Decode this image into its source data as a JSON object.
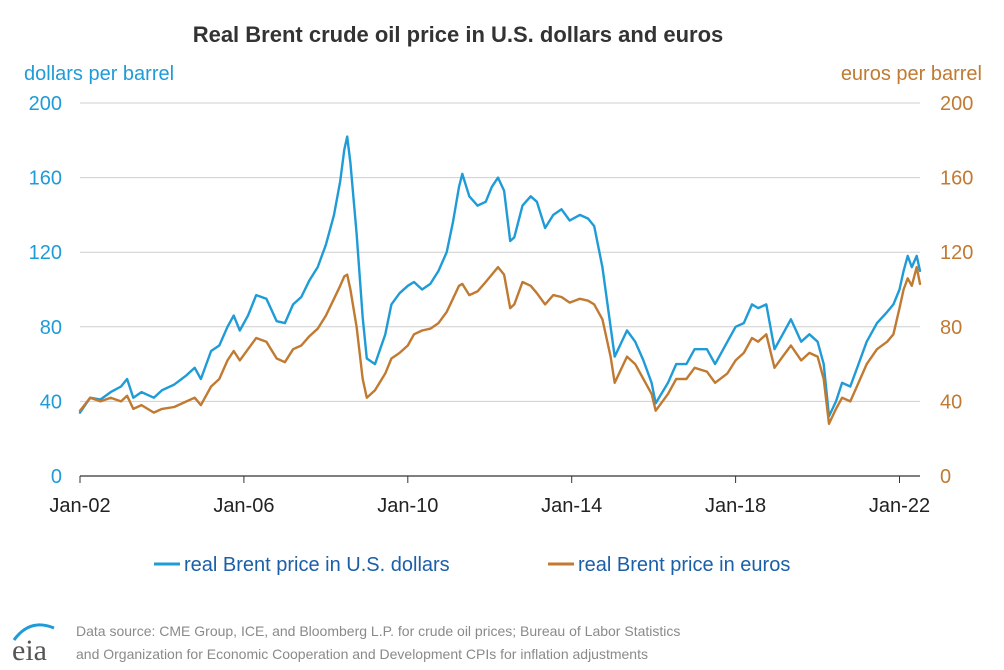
{
  "colors": {
    "usd": "#1f9bd7",
    "eur": "#c07a32",
    "grid": "#cfcfcf",
    "axis": "#333333",
    "source": "#8a8a8a",
    "logo": "#555555",
    "logo_swoosh": "#1f9bd7"
  },
  "source_lines": [
    "Data source: CME Group, ICE, and Bloomberg L.P. for crude oil prices; Bureau of Labor Statistics",
    "and Organization for Economic Cooperation and Development CPIs for inflation adjustments"
  ],
  "logo": {
    "text": "eia"
  },
  "chart_data": {
    "type": "line",
    "title": "Real Brent crude oil price in U.S. dollars and euros",
    "ylabel_left": "dollars per barrel",
    "ylabel_right": "euros per barrel",
    "ylim": [
      0,
      200
    ],
    "yticks": [
      0,
      40,
      80,
      120,
      160,
      200
    ],
    "xlim": [
      2002.0,
      2022.5
    ],
    "xticks": [
      {
        "label": "Jan-02",
        "value": 2002
      },
      {
        "label": "Jan-06",
        "value": 2006
      },
      {
        "label": "Jan-10",
        "value": 2010
      },
      {
        "label": "Jan-14",
        "value": 2014
      },
      {
        "label": "Jan-18",
        "value": 2018
      },
      {
        "label": "Jan-22",
        "value": 2022
      }
    ],
    "grid": true,
    "legend_position": "bottom",
    "series": [
      {
        "name": "real Brent price in U.S. dollars",
        "color": "#1f9bd7",
        "axis": "left",
        "points": [
          [
            2002.0,
            34
          ],
          [
            2002.25,
            42
          ],
          [
            2002.5,
            41
          ],
          [
            2002.75,
            45
          ],
          [
            2003.0,
            48
          ],
          [
            2003.15,
            52
          ],
          [
            2003.3,
            42
          ],
          [
            2003.5,
            45
          ],
          [
            2003.8,
            42
          ],
          [
            2004.0,
            46
          ],
          [
            2004.3,
            49
          ],
          [
            2004.6,
            54
          ],
          [
            2004.8,
            58
          ],
          [
            2004.95,
            52
          ],
          [
            2005.2,
            67
          ],
          [
            2005.4,
            70
          ],
          [
            2005.6,
            80
          ],
          [
            2005.75,
            86
          ],
          [
            2005.9,
            78
          ],
          [
            2006.1,
            86
          ],
          [
            2006.3,
            97
          ],
          [
            2006.55,
            95
          ],
          [
            2006.8,
            83
          ],
          [
            2007.0,
            82
          ],
          [
            2007.2,
            92
          ],
          [
            2007.4,
            96
          ],
          [
            2007.6,
            105
          ],
          [
            2007.8,
            112
          ],
          [
            2008.0,
            124
          ],
          [
            2008.2,
            140
          ],
          [
            2008.35,
            158
          ],
          [
            2008.45,
            175
          ],
          [
            2008.52,
            182
          ],
          [
            2008.6,
            168
          ],
          [
            2008.75,
            130
          ],
          [
            2008.9,
            85
          ],
          [
            2009.0,
            63
          ],
          [
            2009.2,
            60
          ],
          [
            2009.45,
            76
          ],
          [
            2009.6,
            92
          ],
          [
            2009.8,
            98
          ],
          [
            2010.0,
            102
          ],
          [
            2010.15,
            104
          ],
          [
            2010.35,
            100
          ],
          [
            2010.55,
            103
          ],
          [
            2010.75,
            110
          ],
          [
            2010.95,
            120
          ],
          [
            2011.1,
            136
          ],
          [
            2011.25,
            155
          ],
          [
            2011.33,
            162
          ],
          [
            2011.5,
            150
          ],
          [
            2011.7,
            145
          ],
          [
            2011.9,
            147
          ],
          [
            2012.05,
            155
          ],
          [
            2012.2,
            160
          ],
          [
            2012.35,
            153
          ],
          [
            2012.5,
            126
          ],
          [
            2012.6,
            128
          ],
          [
            2012.8,
            145
          ],
          [
            2013.0,
            150
          ],
          [
            2013.15,
            147
          ],
          [
            2013.35,
            133
          ],
          [
            2013.55,
            140
          ],
          [
            2013.75,
            143
          ],
          [
            2013.95,
            137
          ],
          [
            2014.2,
            140
          ],
          [
            2014.4,
            138
          ],
          [
            2014.55,
            134
          ],
          [
            2014.75,
            112
          ],
          [
            2014.95,
            80
          ],
          [
            2015.05,
            64
          ],
          [
            2015.35,
            78
          ],
          [
            2015.55,
            72
          ],
          [
            2015.75,
            62
          ],
          [
            2015.95,
            50
          ],
          [
            2016.05,
            39
          ],
          [
            2016.35,
            50
          ],
          [
            2016.55,
            60
          ],
          [
            2016.8,
            60
          ],
          [
            2017.0,
            68
          ],
          [
            2017.3,
            68
          ],
          [
            2017.5,
            60
          ],
          [
            2017.8,
            72
          ],
          [
            2018.0,
            80
          ],
          [
            2018.2,
            82
          ],
          [
            2018.4,
            92
          ],
          [
            2018.55,
            90
          ],
          [
            2018.75,
            92
          ],
          [
            2018.95,
            68
          ],
          [
            2019.15,
            76
          ],
          [
            2019.35,
            84
          ],
          [
            2019.6,
            72
          ],
          [
            2019.8,
            76
          ],
          [
            2020.0,
            72
          ],
          [
            2020.15,
            60
          ],
          [
            2020.28,
            32
          ],
          [
            2020.45,
            40
          ],
          [
            2020.6,
            50
          ],
          [
            2020.8,
            48
          ],
          [
            2021.0,
            60
          ],
          [
            2021.2,
            72
          ],
          [
            2021.45,
            82
          ],
          [
            2021.7,
            88
          ],
          [
            2021.85,
            92
          ],
          [
            2022.0,
            100
          ],
          [
            2022.1,
            110
          ],
          [
            2022.2,
            118
          ],
          [
            2022.3,
            112
          ],
          [
            2022.42,
            118
          ],
          [
            2022.5,
            110
          ]
        ]
      },
      {
        "name": "real Brent price in euros",
        "color": "#c07a32",
        "axis": "right",
        "points": [
          [
            2002.0,
            35
          ],
          [
            2002.25,
            42
          ],
          [
            2002.5,
            40
          ],
          [
            2002.75,
            42
          ],
          [
            2003.0,
            40
          ],
          [
            2003.15,
            43
          ],
          [
            2003.3,
            36
          ],
          [
            2003.5,
            38
          ],
          [
            2003.8,
            34
          ],
          [
            2004.0,
            36
          ],
          [
            2004.3,
            37
          ],
          [
            2004.6,
            40
          ],
          [
            2004.8,
            42
          ],
          [
            2004.95,
            38
          ],
          [
            2005.2,
            48
          ],
          [
            2005.4,
            52
          ],
          [
            2005.6,
            62
          ],
          [
            2005.75,
            67
          ],
          [
            2005.9,
            62
          ],
          [
            2006.1,
            68
          ],
          [
            2006.3,
            74
          ],
          [
            2006.55,
            72
          ],
          [
            2006.8,
            63
          ],
          [
            2007.0,
            61
          ],
          [
            2007.2,
            68
          ],
          [
            2007.4,
            70
          ],
          [
            2007.6,
            75
          ],
          [
            2007.8,
            79
          ],
          [
            2008.0,
            86
          ],
          [
            2008.2,
            95
          ],
          [
            2008.35,
            102
          ],
          [
            2008.45,
            107
          ],
          [
            2008.52,
            108
          ],
          [
            2008.6,
            100
          ],
          [
            2008.75,
            80
          ],
          [
            2008.9,
            52
          ],
          [
            2009.0,
            42
          ],
          [
            2009.2,
            46
          ],
          [
            2009.45,
            55
          ],
          [
            2009.6,
            63
          ],
          [
            2009.8,
            66
          ],
          [
            2010.0,
            70
          ],
          [
            2010.15,
            76
          ],
          [
            2010.35,
            78
          ],
          [
            2010.55,
            79
          ],
          [
            2010.75,
            82
          ],
          [
            2010.95,
            88
          ],
          [
            2011.1,
            95
          ],
          [
            2011.25,
            102
          ],
          [
            2011.33,
            103
          ],
          [
            2011.5,
            97
          ],
          [
            2011.7,
            99
          ],
          [
            2011.9,
            104
          ],
          [
            2012.05,
            108
          ],
          [
            2012.2,
            112
          ],
          [
            2012.35,
            108
          ],
          [
            2012.5,
            90
          ],
          [
            2012.6,
            92
          ],
          [
            2012.8,
            104
          ],
          [
            2013.0,
            102
          ],
          [
            2013.15,
            98
          ],
          [
            2013.35,
            92
          ],
          [
            2013.55,
            97
          ],
          [
            2013.75,
            96
          ],
          [
            2013.95,
            93
          ],
          [
            2014.2,
            95
          ],
          [
            2014.4,
            94
          ],
          [
            2014.55,
            92
          ],
          [
            2014.75,
            84
          ],
          [
            2014.95,
            64
          ],
          [
            2015.05,
            50
          ],
          [
            2015.35,
            64
          ],
          [
            2015.55,
            60
          ],
          [
            2015.75,
            52
          ],
          [
            2015.95,
            44
          ],
          [
            2016.05,
            35
          ],
          [
            2016.35,
            44
          ],
          [
            2016.55,
            52
          ],
          [
            2016.8,
            52
          ],
          [
            2017.0,
            58
          ],
          [
            2017.3,
            56
          ],
          [
            2017.5,
            50
          ],
          [
            2017.8,
            55
          ],
          [
            2018.0,
            62
          ],
          [
            2018.2,
            66
          ],
          [
            2018.4,
            74
          ],
          [
            2018.55,
            72
          ],
          [
            2018.75,
            76
          ],
          [
            2018.95,
            58
          ],
          [
            2019.15,
            64
          ],
          [
            2019.35,
            70
          ],
          [
            2019.6,
            62
          ],
          [
            2019.8,
            66
          ],
          [
            2020.0,
            64
          ],
          [
            2020.15,
            52
          ],
          [
            2020.28,
            28
          ],
          [
            2020.45,
            36
          ],
          [
            2020.6,
            42
          ],
          [
            2020.8,
            40
          ],
          [
            2021.0,
            50
          ],
          [
            2021.2,
            60
          ],
          [
            2021.45,
            68
          ],
          [
            2021.7,
            72
          ],
          [
            2021.85,
            76
          ],
          [
            2022.0,
            90
          ],
          [
            2022.1,
            100
          ],
          [
            2022.2,
            106
          ],
          [
            2022.3,
            102
          ],
          [
            2022.42,
            112
          ],
          [
            2022.5,
            103
          ]
        ]
      }
    ]
  }
}
